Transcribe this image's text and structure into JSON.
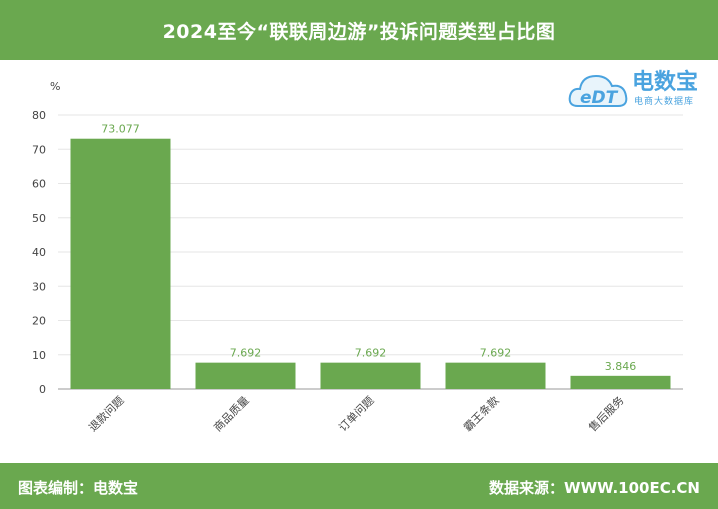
{
  "title": "2024至今“联联周边游”投诉问题类型占比图",
  "logo": {
    "main": "电数宝",
    "sub": "电商大数据库",
    "mark": "eDT"
  },
  "footer": {
    "left": "图表编制：电数宝",
    "right": "数据来源：WWW.100EC.CN"
  },
  "colors": {
    "accent": "#6aa84f",
    "bar": "#6aa84f",
    "label": "#6aa84f",
    "logo": "#4aa3df"
  },
  "chart_data": {
    "type": "bar",
    "ylabel": "%",
    "categories": [
      "退款问题",
      "商品质量",
      "订单问题",
      "霸王条款",
      "售后服务"
    ],
    "values": [
      73.077,
      7.692,
      7.692,
      7.692,
      3.846
    ],
    "value_labels": [
      "73.077",
      "7.692",
      "7.692",
      "7.692",
      "3.846"
    ],
    "ylim": [
      0,
      80
    ],
    "yticks": [
      0,
      10,
      20,
      30,
      40,
      50,
      60,
      70,
      80
    ],
    "grid": true
  }
}
